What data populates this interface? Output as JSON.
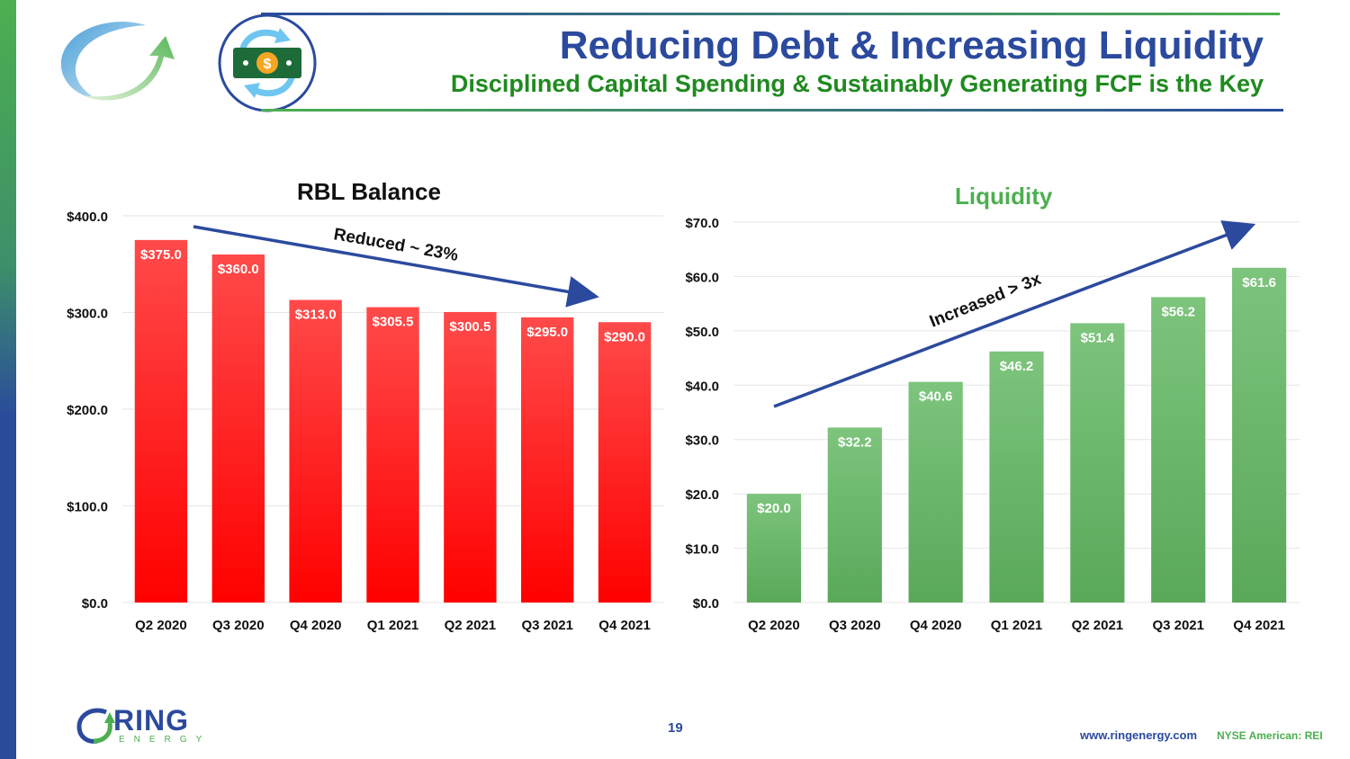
{
  "header": {
    "title": "Reducing Debt & Increasing Liquidity",
    "subtitle": "Disciplined Capital Spending & Sustainably Generating FCF is the Key"
  },
  "colors": {
    "brand_blue": "#2b4a9e",
    "brand_green": "#1f8a1f",
    "bar_red": "#ff2222",
    "bar_green": "#66b266"
  },
  "chart_data": [
    {
      "type": "bar",
      "title": "RBL Balance",
      "categories": [
        "Q2 2020",
        "Q3 2020",
        "Q4 2020",
        "Q1 2021",
        "Q2 2021",
        "Q3 2021",
        "Q4 2021"
      ],
      "values": [
        375.0,
        360.0,
        313.0,
        305.5,
        300.5,
        295.0,
        290.0
      ],
      "data_labels": [
        "$375.0",
        "$360.0",
        "$313.0",
        "$305.5",
        "$300.5",
        "$295.0",
        "$290.0"
      ],
      "yticks": [
        "$0.0",
        "$100.0",
        "$200.0",
        "$300.0",
        "$400.0"
      ],
      "ylim": [
        0,
        400
      ],
      "annotation": "Reduced ~ 23%",
      "grid": true
    },
    {
      "type": "bar",
      "title": "Liquidity",
      "categories": [
        "Q2 2020",
        "Q3 2020",
        "Q4 2020",
        "Q1 2021",
        "Q2 2021",
        "Q3 2021",
        "Q4 2021"
      ],
      "values": [
        20.0,
        32.2,
        40.6,
        46.2,
        51.4,
        56.2,
        61.6
      ],
      "data_labels": [
        "$20.0",
        "$32.2",
        "$40.6",
        "$46.2",
        "$51.4",
        "$56.2",
        "$61.6"
      ],
      "yticks": [
        "$0.0",
        "$10.0",
        "$20.0",
        "$30.0",
        "$40.0",
        "$50.0",
        "$60.0",
        "$70.0"
      ],
      "ylim": [
        0,
        70
      ],
      "annotation": "Increased > 3x",
      "grid": true
    }
  ],
  "footer": {
    "page": "19",
    "url": "www.ringenergy.com",
    "ticker": "NYSE American: REI",
    "logo_text": "RING",
    "logo_sub": "ENERGY"
  }
}
